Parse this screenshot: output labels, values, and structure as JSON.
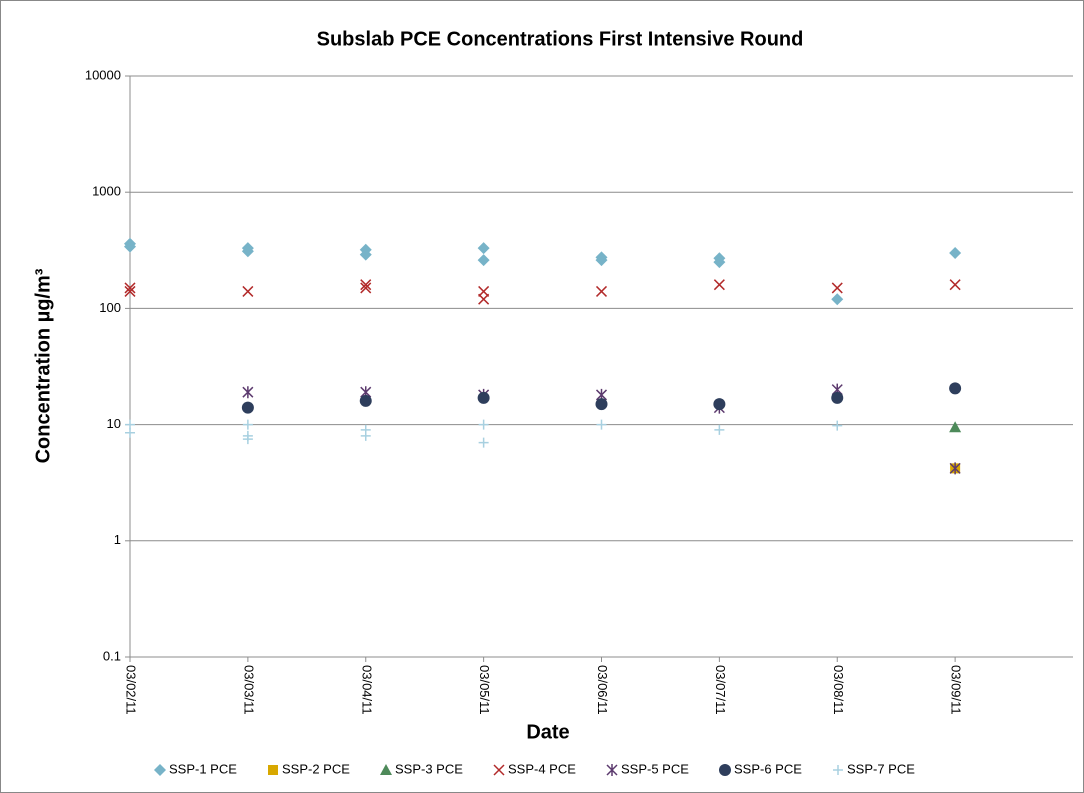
{
  "chart_data": {
    "type": "scatter",
    "title": "Subslab PCE Concentrations First Intensive Round",
    "x_label": "Date",
    "y_label": "Concentration µg/m³",
    "categories": [
      "03/02/11",
      "03/03/11",
      "03/04/11",
      "03/05/11",
      "03/06/11",
      "03/07/11",
      "03/08/11",
      "03/09/11"
    ],
    "ylim": [
      0.1,
      10000
    ],
    "yticks": [
      0.1,
      1,
      10,
      100,
      1000,
      10000
    ],
    "log_scale": true,
    "grid": true,
    "legend": "bottom",
    "series": [
      {
        "name": "SSP-1 PCE",
        "color": "#77b3c8",
        "marker": "diamond",
        "x": [
          "03/02/11",
          "03/02/11",
          "03/03/11",
          "03/03/11",
          "03/04/11",
          "03/04/11",
          "03/05/11",
          "03/05/11",
          "03/06/11",
          "03/06/11",
          "03/07/11",
          "03/07/11",
          "03/08/11",
          "03/09/11"
        ],
        "values": [
          360,
          340,
          330,
          310,
          320,
          290,
          330,
          260,
          275,
          260,
          270,
          250,
          120,
          300
        ]
      },
      {
        "name": "SSP-2 PCE",
        "color": "#d8a800",
        "marker": "square",
        "x": [
          "03/09/11"
        ],
        "values": [
          4.2
        ]
      },
      {
        "name": "SSP-3 PCE",
        "color": "#4e8a5a",
        "marker": "triangle",
        "x": [
          "03/09/11"
        ],
        "values": [
          9.5
        ]
      },
      {
        "name": "SSP-4 PCE",
        "color": "#b22a2a",
        "marker": "x",
        "x": [
          "03/02/11",
          "03/02/11",
          "03/03/11",
          "03/04/11",
          "03/04/11",
          "03/05/11",
          "03/05/11",
          "03/06/11",
          "03/07/11",
          "03/08/11",
          "03/09/11"
        ],
        "values": [
          150,
          140,
          140,
          160,
          150,
          140,
          120,
          140,
          160,
          150,
          160
        ]
      },
      {
        "name": "SSP-5 PCE",
        "color": "#5c3a6e",
        "marker": "star",
        "x": [
          "03/03/11",
          "03/04/11",
          "03/05/11",
          "03/06/11",
          "03/07/11",
          "03/08/11",
          "03/09/11"
        ],
        "values": [
          19,
          19,
          18,
          18,
          14,
          20,
          4.2
        ]
      },
      {
        "name": "SSP-6 PCE",
        "color": "#2e3e5c",
        "marker": "circle",
        "x": [
          "03/03/11",
          "03/04/11",
          "03/05/11",
          "03/06/11",
          "03/07/11",
          "03/08/11",
          "03/09/11"
        ],
        "values": [
          14,
          16,
          17,
          15,
          15,
          17,
          20.5
        ]
      },
      {
        "name": "SSP-7 PCE",
        "color": "#a8d0e0",
        "marker": "plus",
        "x": [
          "03/02/11",
          "03/02/11",
          "03/03/11",
          "03/03/11",
          "03/03/11",
          "03/04/11",
          "03/04/11",
          "03/05/11",
          "03/05/11",
          "03/06/11",
          "03/07/11",
          "03/08/11"
        ],
        "values": [
          10,
          8.5,
          10,
          8,
          7.5,
          9,
          8,
          10,
          7,
          10,
          9,
          9.8
        ]
      }
    ]
  }
}
